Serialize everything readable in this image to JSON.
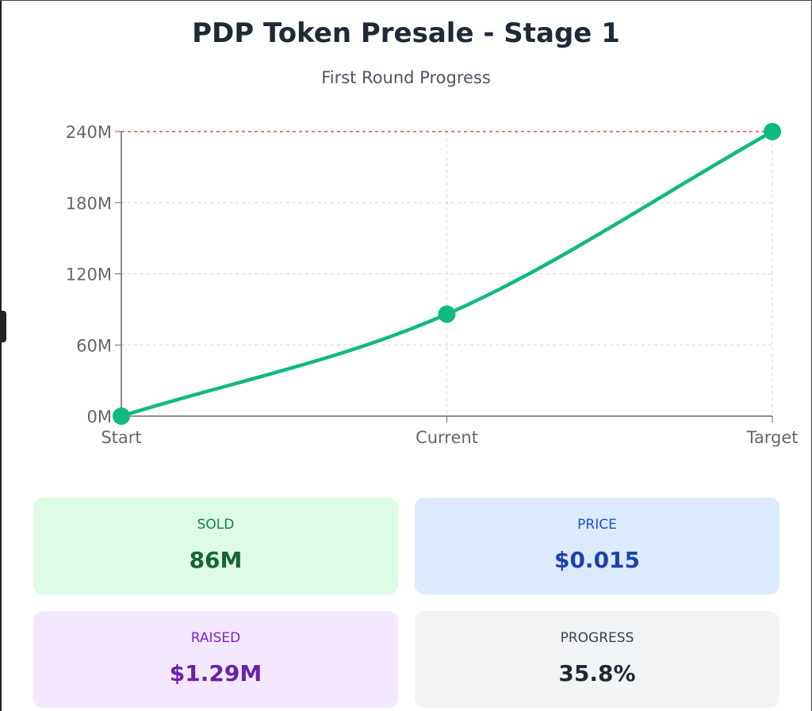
{
  "title": "PDP Token Presale - Stage 1",
  "subtitle": "First Round Progress",
  "chart_data": {
    "type": "line",
    "title": "PDP Token Presale - Stage 1",
    "subtitle": "First Round Progress",
    "categories": [
      "Start",
      "Current",
      "Target"
    ],
    "values": [
      0,
      86,
      240
    ],
    "unit_suffix": "M",
    "yticks": [
      "0M",
      "60M",
      "120M",
      "180M",
      "240M"
    ],
    "ylim": [
      0,
      240
    ],
    "grid": true,
    "reference_line": {
      "value": 240,
      "color": "#ef4444"
    },
    "line_color": "#10b981"
  },
  "stats": [
    {
      "label": "SOLD",
      "value": "86M",
      "bg": "#dcfce7",
      "label_color": "#15803d",
      "value_color": "#166534"
    },
    {
      "label": "PRICE",
      "value": "$0.015",
      "bg": "#dbeafe",
      "label_color": "#1d4ed8",
      "value_color": "#1e40af"
    },
    {
      "label": "RAISED",
      "value": "$1.29M",
      "bg": "#f3e8ff",
      "label_color": "#7e22ce",
      "value_color": "#6b21a8"
    },
    {
      "label": "PROGRESS",
      "value": "35.8%",
      "bg": "#f3f4f6",
      "label_color": "#374151",
      "value_color": "#1f2937"
    }
  ]
}
